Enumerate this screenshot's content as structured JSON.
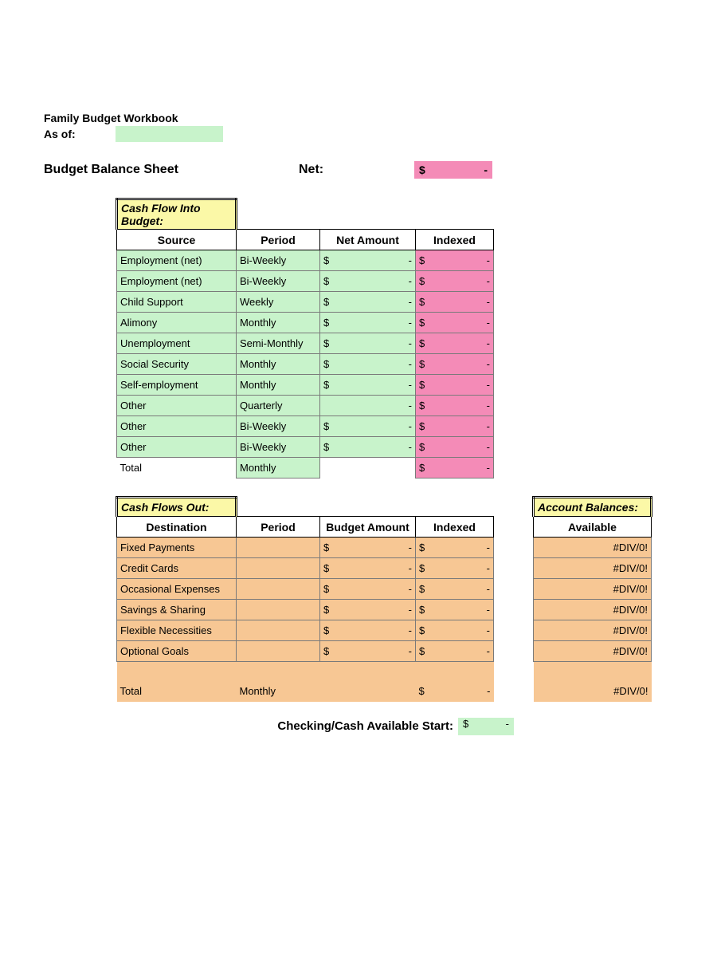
{
  "colors": {
    "green": "#c8f3cb",
    "pink": "#f48bb7",
    "peach": "#f7c794",
    "yellow": "#fbf8a7",
    "border_dark": "#000000",
    "border_light": "#7a7a7a",
    "background": "#ffffff"
  },
  "header": {
    "title": "Family Budget Workbook",
    "as_of_label": "As of:",
    "as_of_value": ""
  },
  "balance_sheet": {
    "title": "Budget Balance Sheet",
    "net_label": "Net:",
    "net_symbol": "$",
    "net_value": "-"
  },
  "cash_in": {
    "section_title": "Cash Flow Into Budget:",
    "columns": {
      "source": "Source",
      "period": "Period",
      "net_amount": "Net Amount",
      "indexed": "Indexed"
    },
    "rows": [
      {
        "source": "Employment (net)",
        "period": "Bi-Weekly",
        "amount_sym": "$",
        "amount_val": "-",
        "indexed_sym": "$",
        "indexed_val": "-"
      },
      {
        "source": "Employment (net)",
        "period": "Bi-Weekly",
        "amount_sym": "$",
        "amount_val": "-",
        "indexed_sym": "$",
        "indexed_val": "-"
      },
      {
        "source": "Child Support",
        "period": "Weekly",
        "amount_sym": "$",
        "amount_val": "-",
        "indexed_sym": "$",
        "indexed_val": "-"
      },
      {
        "source": "Alimony",
        "period": "Monthly",
        "amount_sym": "$",
        "amount_val": "-",
        "indexed_sym": "$",
        "indexed_val": "-"
      },
      {
        "source": "Unemployment",
        "period": "Semi-Monthly",
        "amount_sym": "$",
        "amount_val": "-",
        "indexed_sym": "$",
        "indexed_val": "-"
      },
      {
        "source": "Social Security",
        "period": "Monthly",
        "amount_sym": "$",
        "amount_val": "-",
        "indexed_sym": "$",
        "indexed_val": "-"
      },
      {
        "source": "Self-employment",
        "period": "Monthly",
        "amount_sym": "$",
        "amount_val": "-",
        "indexed_sym": "$",
        "indexed_val": "-"
      },
      {
        "source": "Other",
        "period": "Quarterly",
        "amount_sym": "",
        "amount_val": "-",
        "indexed_sym": "$",
        "indexed_val": "-"
      },
      {
        "source": "Other",
        "period": "Bi-Weekly",
        "amount_sym": "$",
        "amount_val": "-",
        "indexed_sym": "$",
        "indexed_val": "-"
      },
      {
        "source": "Other",
        "period": "Bi-Weekly",
        "amount_sym": "$",
        "amount_val": "-",
        "indexed_sym": "$",
        "indexed_val": "-"
      }
    ],
    "total": {
      "label": "Total",
      "period": "Monthly",
      "indexed_sym": "$",
      "indexed_val": "-"
    }
  },
  "cash_out": {
    "section_title": "Cash Flows Out:",
    "columns": {
      "destination": "Destination",
      "period": "Period",
      "budget_amount": "Budget Amount",
      "indexed": "Indexed"
    },
    "rows": [
      {
        "destination": "Fixed Payments",
        "period": "",
        "amount_sym": "$",
        "amount_val": "-",
        "indexed_sym": "$",
        "indexed_val": "-"
      },
      {
        "destination": "Credit Cards",
        "period": "",
        "amount_sym": "$",
        "amount_val": "-",
        "indexed_sym": "$",
        "indexed_val": "-"
      },
      {
        "destination": "Occasional Expenses",
        "period": "",
        "amount_sym": "$",
        "amount_val": "-",
        "indexed_sym": "$",
        "indexed_val": "-"
      },
      {
        "destination": "Savings & Sharing",
        "period": "",
        "amount_sym": "$",
        "amount_val": "-",
        "indexed_sym": "$",
        "indexed_val": "-"
      },
      {
        "destination": "Flexible Necessities",
        "period": "",
        "amount_sym": "$",
        "amount_val": "-",
        "indexed_sym": "$",
        "indexed_val": "-"
      },
      {
        "destination": "Optional Goals",
        "period": "",
        "amount_sym": "$",
        "amount_val": "-",
        "indexed_sym": "$",
        "indexed_val": "-"
      }
    ],
    "total": {
      "label": "Total",
      "period": "Monthly",
      "indexed_sym": "$",
      "indexed_val": "-"
    }
  },
  "balances": {
    "section_title": "Account Balances:",
    "column": "Available",
    "rows": [
      {
        "value": "#DIV/0!"
      },
      {
        "value": "#DIV/0!"
      },
      {
        "value": "#DIV/0!"
      },
      {
        "value": "#DIV/0!"
      },
      {
        "value": "#DIV/0!"
      },
      {
        "value": "#DIV/0!"
      }
    ],
    "total": {
      "value": "#DIV/0!"
    }
  },
  "checking": {
    "label": "Checking/Cash Available Start:",
    "symbol": "$",
    "value": "-"
  }
}
